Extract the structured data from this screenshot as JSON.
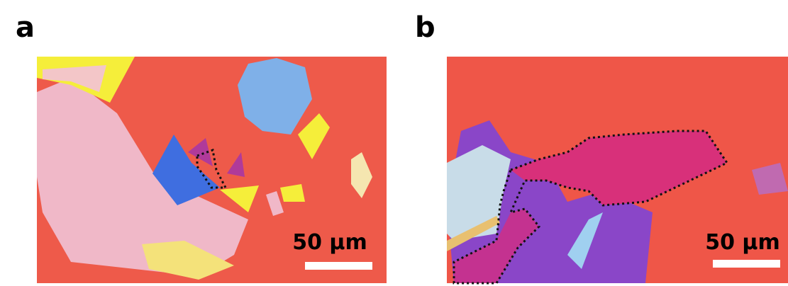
{
  "panels": [
    {
      "label": "a",
      "scale_bar": "50 µm"
    },
    {
      "label": "b",
      "scale_bar": "50 µm"
    }
  ]
}
